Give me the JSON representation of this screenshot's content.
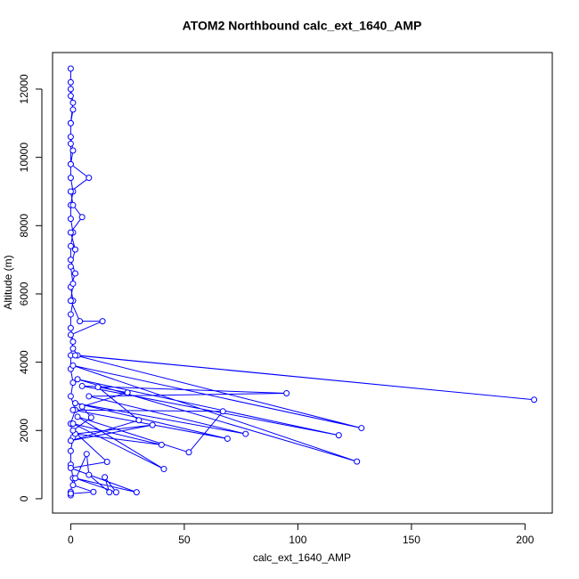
{
  "chart_data": {
    "type": "line",
    "title": "ATOM2 Northbound calc_ext_1640_AMP",
    "x_label": "calc_ext_1640_AMP",
    "y_label": "Altitude (m)",
    "xlim": [
      -8,
      212
    ],
    "ylim": [
      -420,
      13070
    ],
    "xticks": [
      0,
      50,
      100,
      150,
      200
    ],
    "yticks": [
      0,
      2000,
      4000,
      6000,
      8000,
      10000,
      12000
    ],
    "marker": "circle",
    "x": [
      0,
      0,
      1,
      0,
      0,
      1,
      0,
      2,
      0,
      1,
      0,
      0,
      1,
      0,
      0,
      1,
      0,
      2,
      0,
      0,
      1,
      0,
      0,
      1,
      0,
      0,
      1,
      0,
      0,
      1,
      0,
      0,
      0,
      0,
      1,
      0,
      0,
      0,
      8,
      0,
      1,
      5,
      0,
      2,
      0,
      1,
      0,
      4,
      14,
      0,
      1,
      3,
      204,
      2,
      128,
      1,
      126,
      3,
      118,
      5,
      95,
      8,
      77,
      2,
      69,
      1,
      67,
      52,
      3,
      41,
      1,
      40,
      2,
      36,
      0,
      30,
      12,
      25,
      5,
      9,
      1,
      16,
      0,
      29,
      2,
      20,
      15,
      17,
      8,
      7,
      1,
      10,
      0
    ],
    "series": [
      {
        "name": "calc_ext_1640_AMP",
        "color": "#0000ff",
        "values": [
          100,
          200,
          600,
          1000,
          1400,
          1800,
          2200,
          2600,
          3000,
          3400,
          3800,
          4200,
          4600,
          5000,
          5400,
          5800,
          6200,
          6600,
          7000,
          7400,
          7800,
          8200,
          8600,
          9000,
          9400,
          9800,
          10200,
          10600,
          11000,
          11400,
          11800,
          12200,
          12600,
          12000,
          11600,
          11000,
          10400,
          9800,
          9400,
          9000,
          8600,
          8250,
          7800,
          7300,
          6800,
          6300,
          5800,
          5200,
          5200,
          4800,
          4400,
          4200,
          2900,
          4200,
          2070,
          3900,
          1090,
          3500,
          1860,
          3300,
          3090,
          3000,
          1900,
          2800,
          1760,
          2600,
          2560,
          1360,
          2400,
          870,
          2200,
          1580,
          1900,
          2160,
          1700,
          2300,
          3270,
          3110,
          2700,
          2380,
          2000,
          1080,
          900,
          190,
          600,
          190,
          630,
          190,
          700,
          1310,
          400,
          200,
          150
        ]
      }
    ]
  }
}
